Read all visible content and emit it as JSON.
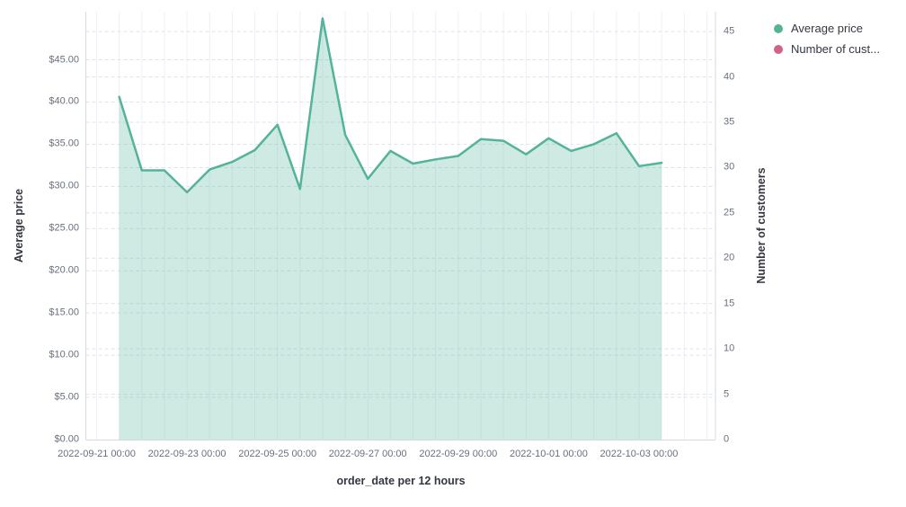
{
  "figure": {
    "background": "#ffffff"
  },
  "legend": {
    "items": [
      {
        "label": "Average price",
        "color": "#54B399"
      },
      {
        "label": "Number of cust...",
        "color": "#D36086"
      }
    ]
  },
  "axes": {
    "left": {
      "title": "Average price",
      "tick_labels": [
        "$0.00",
        "$5.00",
        "$10.00",
        "$15.00",
        "$20.00",
        "$25.00",
        "$30.00",
        "$35.00",
        "$40.00",
        "$45.00"
      ],
      "tick_values": [
        0,
        5,
        10,
        15,
        20,
        25,
        30,
        35,
        40,
        45
      ],
      "domain": [
        0,
        50.7
      ]
    },
    "right": {
      "title": "Number of customers",
      "tick_labels": [
        "0",
        "5",
        "10",
        "15",
        "20",
        "25",
        "30",
        "35",
        "40",
        "45"
      ],
      "tick_values": [
        0,
        5,
        10,
        15,
        20,
        25,
        30,
        35,
        40,
        45
      ],
      "domain": [
        0,
        47.2
      ]
    },
    "x": {
      "title": "order_date per 12 hours",
      "tick_labels": [
        "2022-09-21 00:00",
        "2022-09-23 00:00",
        "2022-09-25 00:00",
        "2022-09-27 00:00",
        "2022-09-29 00:00",
        "2022-10-01 00:00",
        "2022-10-03 00:00"
      ]
    }
  },
  "chart_data": {
    "type": "area",
    "xlabel": "order_date per 12 hours",
    "ylabel_left": "Average price",
    "ylabel_right": "Number of customers",
    "x_interval": "12 hours",
    "x": [
      "2022-09-21 12:00",
      "2022-09-22 00:00",
      "2022-09-22 12:00",
      "2022-09-23 00:00",
      "2022-09-23 12:00",
      "2022-09-24 00:00",
      "2022-09-24 12:00",
      "2022-09-25 00:00",
      "2022-09-25 12:00",
      "2022-09-26 00:00",
      "2022-09-26 12:00",
      "2022-09-27 00:00",
      "2022-09-27 12:00",
      "2022-09-28 00:00",
      "2022-09-28 12:00",
      "2022-09-29 00:00",
      "2022-09-29 12:00",
      "2022-09-30 00:00",
      "2022-09-30 12:00",
      "2022-10-01 00:00",
      "2022-10-01 12:00",
      "2022-10-02 00:00",
      "2022-10-02 12:00",
      "2022-10-03 00:00",
      "2022-10-03 12:00"
    ],
    "series": [
      {
        "name": "Average price",
        "axis": "left",
        "color": "#54B399",
        "fill_opacity": 0.28,
        "visible": true,
        "values": [
          40.6,
          31.9,
          31.9,
          29.3,
          32.0,
          32.9,
          34.3,
          37.3,
          29.7,
          49.9,
          36.1,
          30.9,
          34.2,
          32.7,
          33.2,
          33.6,
          35.6,
          35.4,
          33.8,
          35.7,
          34.2,
          35.0,
          36.3,
          32.4,
          32.8
        ]
      },
      {
        "name": "Number of customers",
        "axis": "right",
        "color": "#D36086",
        "visible": false,
        "values": []
      }
    ],
    "x_tick_labels": [
      "2022-09-21 00:00",
      "2022-09-23 00:00",
      "2022-09-25 00:00",
      "2022-09-27 00:00",
      "2022-09-29 00:00",
      "2022-10-01 00:00",
      "2022-10-03 00:00"
    ],
    "left_ylim": [
      0,
      50.7
    ],
    "right_ylim": [
      0,
      47.2
    ],
    "grid": true,
    "legend_position": "top-right"
  },
  "style": {
    "grid_vertical_color": "#eef1f6",
    "grid_dashed_color": "#dde3ec",
    "axis_line_color": "#d3dae6",
    "tick_text_color": "#69707d",
    "title_text_color": "#343741"
  }
}
